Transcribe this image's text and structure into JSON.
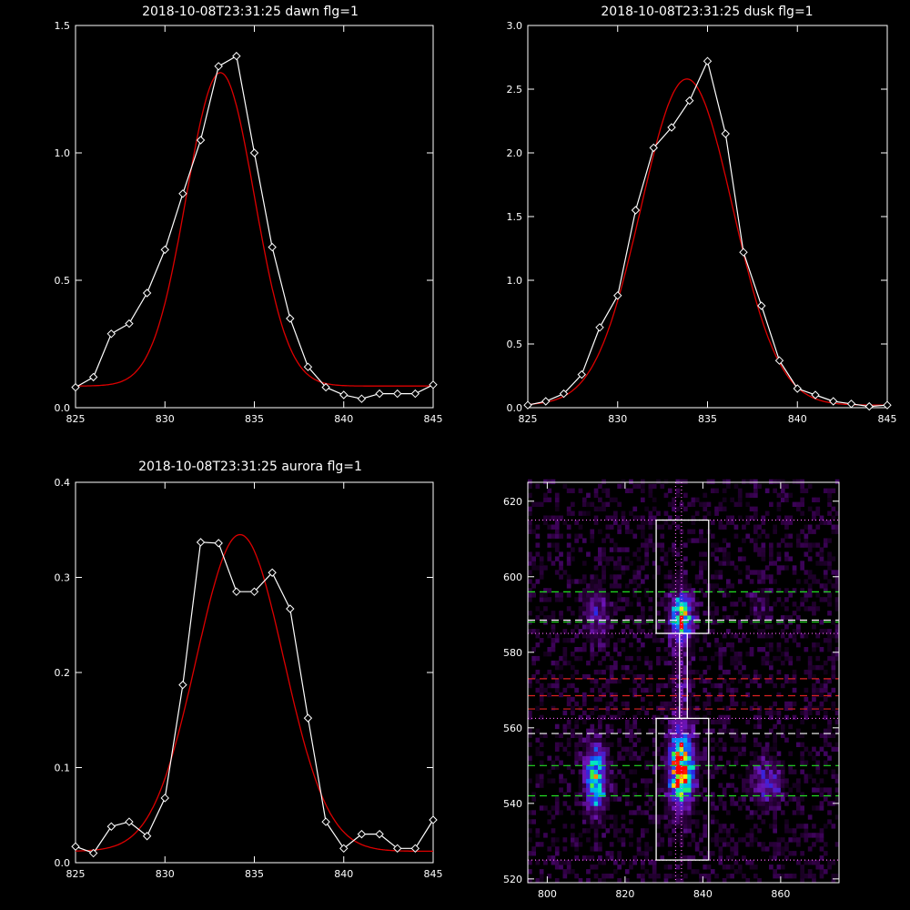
{
  "colors": {
    "background": "#000000",
    "axes": "#ffffff",
    "data_line": "#ffffff",
    "fit_line": "#dd0000",
    "guide_white": "#ffffff",
    "guide_green": "#22dd22",
    "guide_red": "#dd2222",
    "guide_magenta": "#ff66ff"
  },
  "chart_data": [
    {
      "type": "line",
      "title": "2018-10-08T23:31:25 dawn flg=1",
      "xlim": [
        825,
        845
      ],
      "ylim": [
        0,
        1.5
      ],
      "xticks": [
        "825",
        "830",
        "835",
        "840",
        "845"
      ],
      "yticks": [
        "0.0",
        "0.5",
        "1.0",
        "1.5"
      ],
      "series": [
        {
          "role": "data",
          "marker": "diamond",
          "x": [
            825,
            826,
            827,
            828,
            829,
            830,
            831,
            832,
            833,
            834,
            835,
            836,
            837,
            838,
            839,
            840,
            841,
            842,
            843,
            844,
            845
          ],
          "y": [
            0.08,
            0.12,
            0.29,
            0.33,
            0.45,
            0.62,
            0.84,
            1.05,
            1.34,
            1.38,
            1.0,
            0.63,
            0.35,
            0.16,
            0.08,
            0.05,
            0.035,
            0.055,
            0.055,
            0.055,
            0.09
          ]
        },
        {
          "role": "fit",
          "shape": "gaussian",
          "center": 833.1,
          "sigma": 1.9,
          "amplitude": 1.23,
          "baseline": 0.085
        }
      ]
    },
    {
      "type": "line",
      "title": "2018-10-08T23:31:25 dusk flg=1",
      "xlim": [
        825,
        845
      ],
      "ylim": [
        0,
        3.0
      ],
      "xticks": [
        "825",
        "830",
        "835",
        "840",
        "845"
      ],
      "yticks": [
        "0.0",
        "0.5",
        "1.0",
        "1.5",
        "2.0",
        "2.5",
        "3.0"
      ],
      "series": [
        {
          "role": "data",
          "marker": "diamond",
          "x": [
            825,
            826,
            827,
            828,
            829,
            830,
            831,
            832,
            833,
            834,
            835,
            836,
            837,
            838,
            839,
            840,
            841,
            842,
            843,
            844,
            845
          ],
          "y": [
            0.02,
            0.05,
            0.11,
            0.26,
            0.63,
            0.88,
            1.55,
            2.04,
            2.2,
            2.41,
            2.72,
            2.15,
            1.22,
            0.8,
            0.37,
            0.15,
            0.1,
            0.05,
            0.03,
            0.01,
            0.02
          ]
        },
        {
          "role": "fit",
          "shape": "gaussian",
          "center": 833.85,
          "sigma": 2.55,
          "amplitude": 2.56,
          "baseline": 0.02
        }
      ]
    },
    {
      "type": "line",
      "title": "2018-10-08T23:31:25 aurora flg=1",
      "xlim": [
        825,
        845
      ],
      "ylim": [
        0,
        0.4
      ],
      "xticks": [
        "825",
        "830",
        "835",
        "840",
        "845"
      ],
      "yticks": [
        "0.0",
        "0.1",
        "0.2",
        "0.3",
        "0.4"
      ],
      "series": [
        {
          "role": "data",
          "marker": "diamond",
          "x": [
            825,
            826,
            827,
            828,
            829,
            830,
            831,
            832,
            833,
            834,
            835,
            836,
            837,
            838,
            839,
            840,
            841,
            842,
            843,
            844,
            845
          ],
          "y": [
            0.017,
            0.01,
            0.038,
            0.043,
            0.028,
            0.068,
            0.187,
            0.337,
            0.336,
            0.285,
            0.285,
            0.305,
            0.267,
            0.152,
            0.043,
            0.015,
            0.03,
            0.03,
            0.015,
            0.015,
            0.045
          ]
        },
        {
          "role": "fit",
          "shape": "gaussian",
          "center": 834.2,
          "sigma": 2.45,
          "amplitude": 0.333,
          "baseline": 0.012
        }
      ]
    },
    {
      "type": "heatmap",
      "title": "",
      "xlim": [
        795,
        875
      ],
      "ylim": [
        519,
        625
      ],
      "xticks": [
        "800",
        "820",
        "840",
        "860"
      ],
      "yticks": [
        "520",
        "540",
        "560",
        "580",
        "600",
        "620"
      ],
      "colormap": "black-purple-blue-cyan-green-yellow-red",
      "blobs": [
        {
          "x": 834,
          "y": 548,
          "sx": 2.2,
          "sy": 6.5,
          "amp": 1.0
        },
        {
          "x": 834,
          "y": 589,
          "sx": 2.0,
          "sy": 4.5,
          "amp": 0.65
        },
        {
          "x": 812,
          "y": 546,
          "sx": 2.0,
          "sy": 6.0,
          "amp": 0.72
        },
        {
          "x": 812,
          "y": 590,
          "sx": 2.2,
          "sy": 5.0,
          "amp": 0.3
        },
        {
          "x": 856,
          "y": 545,
          "sx": 2.6,
          "sy": 4.0,
          "amp": 0.38
        },
        {
          "x": 854,
          "y": 591,
          "sx": 2.6,
          "sy": 4.0,
          "amp": 0.12
        },
        {
          "x": 834,
          "y": 570,
          "sx": 1.8,
          "sy": 18.0,
          "amp": 0.16
        }
      ],
      "boxes": [
        {
          "x0": 828,
          "x1": 841.5,
          "y0": 525,
          "y1": 562.5
        },
        {
          "x0": 828,
          "x1": 841.5,
          "y0": 585,
          "y1": 615
        }
      ],
      "connector": {
        "x0": 834,
        "x1": 836,
        "y0": 562.5,
        "y1": 585
      },
      "vlines": [
        {
          "x": 833,
          "color": "guide_magenta",
          "style": "dotted"
        },
        {
          "x": 834.5,
          "color": "guide_magenta",
          "style": "dotted"
        }
      ],
      "hlines": [
        {
          "y": 615,
          "color": "guide_magenta",
          "style": "dotted"
        },
        {
          "y": 596,
          "color": "guide_green",
          "style": "dashed"
        },
        {
          "y": 588.5,
          "color": "guide_white",
          "style": "dashed"
        },
        {
          "y": 588,
          "color": "guide_green",
          "style": "dashed"
        },
        {
          "y": 585,
          "color": "guide_magenta",
          "style": "dotted"
        },
        {
          "y": 573,
          "color": "guide_red",
          "style": "dashed"
        },
        {
          "y": 568.5,
          "color": "guide_red",
          "style": "dashed"
        },
        {
          "y": 565,
          "color": "guide_red",
          "style": "dashed"
        },
        {
          "y": 562.5,
          "color": "guide_magenta",
          "style": "dotted"
        },
        {
          "y": 558.5,
          "color": "guide_white",
          "style": "dashed"
        },
        {
          "y": 550,
          "color": "guide_green",
          "style": "dashed"
        },
        {
          "y": 542,
          "color": "guide_green",
          "style": "dashed"
        },
        {
          "y": 525,
          "color": "guide_magenta",
          "style": "dotted"
        }
      ]
    }
  ]
}
